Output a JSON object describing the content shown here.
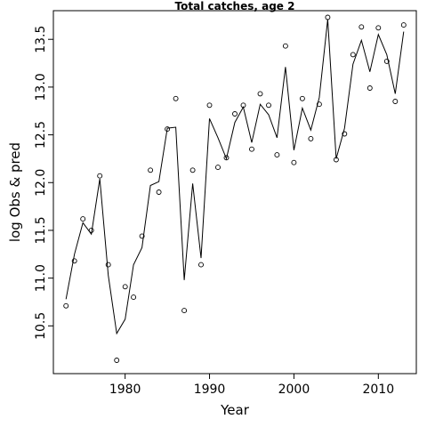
{
  "chart_data": {
    "type": "line",
    "title": "Total catches, age 2",
    "xlabel": "Year",
    "ylabel": "log Obs & pred",
    "xlim": [
      1971.5,
      2014.5
    ],
    "ylim": [
      10.0,
      13.8
    ],
    "x_ticks": [
      1980,
      1990,
      2000,
      2010
    ],
    "y_ticks": [
      10.5,
      11.0,
      11.5,
      12.0,
      12.5,
      13.0,
      13.5
    ],
    "grid": false,
    "legend": "none",
    "series": [
      {
        "role": "observed",
        "marker": "open-circle",
        "x": [
          1973,
          1974,
          1975,
          1976,
          1977,
          1978,
          1979,
          1980,
          1981,
          1982,
          1983,
          1984,
          1985,
          1986,
          1987,
          1988,
          1989,
          1990,
          1991,
          1992,
          1993,
          1994,
          1995,
          1996,
          1997,
          1998,
          1999,
          2000,
          2001,
          2002,
          2003,
          2004,
          2005,
          2006,
          2007,
          2008,
          2009,
          2010,
          2011,
          2012,
          2013
        ],
        "y": [
          10.71,
          11.18,
          11.62,
          11.5,
          12.07,
          11.14,
          10.14,
          10.91,
          10.8,
          11.44,
          12.13,
          11.9,
          12.56,
          12.88,
          10.66,
          12.13,
          11.14,
          12.81,
          12.16,
          12.26,
          12.72,
          12.81,
          12.35,
          12.93,
          12.81,
          12.29,
          13.43,
          12.21,
          12.88,
          12.46,
          12.82,
          13.73,
          12.24,
          12.51,
          13.34,
          13.63,
          12.99,
          13.62,
          13.27,
          12.85,
          13.65
        ]
      },
      {
        "role": "predicted",
        "marker": "line",
        "x": [
          1973,
          1974,
          1975,
          1976,
          1977,
          1978,
          1979,
          1980,
          1981,
          1982,
          1983,
          1984,
          1985,
          1986,
          1987,
          1988,
          1989,
          1990,
          1991,
          1992,
          1993,
          1994,
          1995,
          1996,
          1997,
          1998,
          1999,
          2000,
          2001,
          2002,
          2003,
          2004,
          2005,
          2006,
          2007,
          2008,
          2009,
          2010,
          2011,
          2012,
          2013
        ],
        "y": [
          10.78,
          11.25,
          11.58,
          11.46,
          12.04,
          11.03,
          10.42,
          10.57,
          11.14,
          11.32,
          11.97,
          12.01,
          12.57,
          12.58,
          10.98,
          11.99,
          11.21,
          12.67,
          12.47,
          12.25,
          12.63,
          12.79,
          12.42,
          12.82,
          12.71,
          12.47,
          13.21,
          12.34,
          12.78,
          12.55,
          12.89,
          13.71,
          12.25,
          12.57,
          13.24,
          13.49,
          13.16,
          13.55,
          13.34,
          12.93,
          13.58
        ]
      }
    ]
  }
}
